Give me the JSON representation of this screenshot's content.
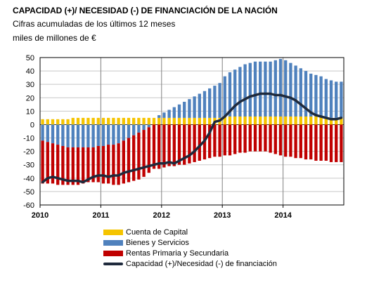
{
  "title_lines": [
    "CAPACIDAD (+)/ NECESIDAD (-) DE FINANCIACIÓN DE LA NACIÓN",
    "Cifras acumuladas de los últimos 12 meses",
    "miles de millones de €"
  ],
  "colors": {
    "capital": "#f5c400",
    "bienes": "#4f81bd",
    "rentas": "#c00000",
    "capacidad": "#1f2a3c",
    "grid": "#c8c8c8",
    "year_grid": "#808080"
  },
  "chart_data": {
    "type": "bar",
    "stacked": true,
    "title": "CAPACIDAD (+)/ NECESIDAD (-) DE FINANCIACIÓN DE LA NACIÓN",
    "subtitle": "Cifras acumuladas de los últimos 12 meses",
    "ylabel": "miles de millones de €",
    "ylim": [
      -60,
      50
    ],
    "yticks": [
      50,
      40,
      30,
      20,
      10,
      0,
      -10,
      -20,
      -30,
      -40,
      -50,
      -60
    ],
    "xticks": [
      "2010",
      "2011",
      "2012",
      "2013",
      "2014"
    ],
    "months": 60,
    "grid": true,
    "legend_position": "bottom",
    "series": [
      {
        "name": "Cuenta de Capital",
        "kind": "bar",
        "color_key": "capital",
        "values": [
          4,
          4,
          4,
          4,
          4,
          4,
          5,
          5,
          5,
          5,
          5,
          5,
          5,
          5,
          5,
          5,
          5,
          5,
          5,
          5,
          5,
          5,
          5,
          5,
          5,
          5,
          5,
          5,
          5,
          5,
          5,
          5,
          5,
          5,
          5,
          5,
          6,
          6,
          6,
          6,
          6,
          6,
          6,
          6,
          6,
          6,
          6,
          6,
          6,
          6,
          6,
          6,
          6,
          6,
          6,
          6,
          5,
          5,
          5,
          5
        ]
      },
      {
        "name": "Bienes y Servicios",
        "kind": "bar",
        "color_key": "bienes",
        "values": [
          -12,
          -13,
          -14,
          -15,
          -16,
          -17,
          -17,
          -17,
          -17,
          -17,
          -17,
          -16,
          -16,
          -15,
          -15,
          -14,
          -12,
          -10,
          -8,
          -6,
          -4,
          -2,
          0,
          2,
          4,
          6,
          8,
          10,
          12,
          14,
          16,
          18,
          20,
          22,
          24,
          26,
          30,
          33,
          35,
          37,
          39,
          40,
          41,
          41,
          41,
          41,
          42,
          43,
          42,
          40,
          38,
          36,
          34,
          32,
          31,
          30,
          29,
          28,
          27,
          27
        ]
      },
      {
        "name": "Rentas Primaria y Secundaria",
        "kind": "bar",
        "color_key": "rentas",
        "values": [
          -32,
          -31,
          -30,
          -30,
          -29,
          -28,
          -28,
          -28,
          -27,
          -26,
          -26,
          -27,
          -28,
          -29,
          -30,
          -31,
          -32,
          -33,
          -34,
          -35,
          -35,
          -34,
          -33,
          -33,
          -32,
          -31,
          -31,
          -30,
          -30,
          -29,
          -28,
          -27,
          -26,
          -25,
          -24,
          -24,
          -23,
          -23,
          -22,
          -21,
          -21,
          -20,
          -20,
          -20,
          -20,
          -21,
          -22,
          -23,
          -24,
          -24,
          -25,
          -25,
          -26,
          -26,
          -27,
          -27,
          -27,
          -28,
          -28,
          -28
        ]
      },
      {
        "name": "Capacidad (+)/Necesidad (-) de financiación",
        "kind": "line",
        "color_key": "capacidad",
        "values": [
          -43,
          -40,
          -39,
          -40,
          -41,
          -42,
          -42,
          -42,
          -43,
          -41,
          -39,
          -38,
          -38,
          -39,
          -38,
          -38,
          -36,
          -35,
          -34,
          -33,
          -32,
          -31,
          -30,
          -29,
          -29,
          -28,
          -29,
          -27,
          -25,
          -23,
          -20,
          -16,
          -12,
          -6,
          2,
          3,
          6,
          10,
          14,
          17,
          19,
          21,
          22,
          23,
          23,
          23,
          22,
          22,
          21,
          20,
          18,
          15,
          12,
          9,
          7,
          6,
          5,
          4,
          4,
          5
        ]
      }
    ]
  }
}
